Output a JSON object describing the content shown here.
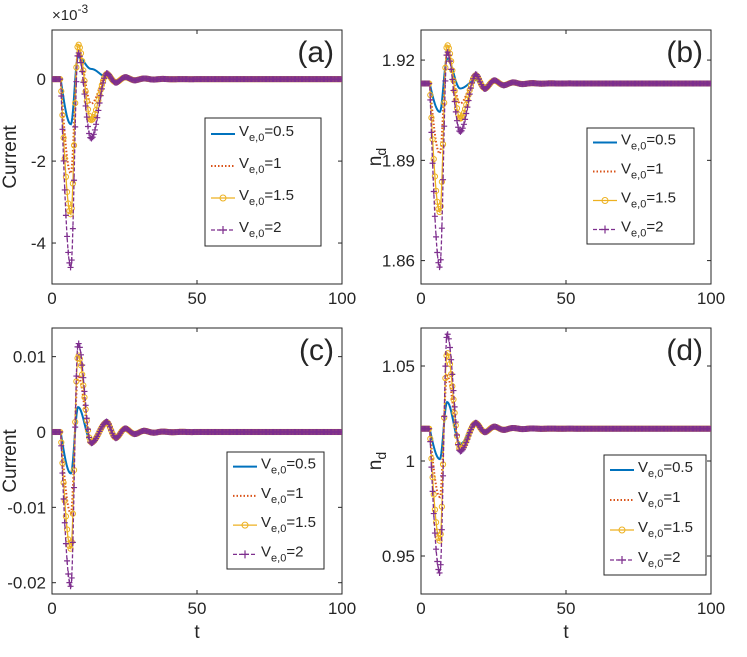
{
  "colors": {
    "s05": "#0072BD",
    "s1": "#D95319",
    "s15": "#EDB120",
    "s2": "#7E2F8E",
    "axis": "#262626"
  },
  "chart_data": [
    {
      "panel": "a",
      "type": "line",
      "title": "(a)",
      "xlabel": "",
      "ylabel": "Current",
      "exponent_label": "×10",
      "exponent_power": "-3",
      "xlim": [
        0,
        100
      ],
      "ylim": [
        -5,
        1.2
      ],
      "xticks": [
        0,
        50,
        100
      ],
      "xtick_labels": [
        "0",
        "50",
        "100"
      ],
      "yticks": [
        -4,
        -2,
        0
      ],
      "ytick_labels": [
        "-4",
        "-2",
        "0"
      ],
      "baseline": 0,
      "legend_position": "center-right",
      "series": [
        {
          "name": "V_{e,0}=0.5",
          "label_main": "V",
          "label_sub": "e,0",
          "label_val": "=0.5",
          "style": "solid",
          "color_key": "s05",
          "min": -1.1,
          "max": 0.55,
          "tr": 0.25,
          "ts": 0.05
        },
        {
          "name": "V_{e,0}=1",
          "label_main": "V",
          "label_sub": "e,0",
          "label_val": "=1",
          "style": "dotted",
          "color_key": "s1",
          "min": -2.3,
          "max": 0.7,
          "tr": -0.6,
          "ts": 0.12
        },
        {
          "name": "V_{e,0}=1.5",
          "label_main": "V",
          "label_sub": "e,0",
          "label_val": "=1.5",
          "style": "circle",
          "color_key": "s15",
          "min": -3.3,
          "max": 0.85,
          "tr": -1.0,
          "ts": 0.13
        },
        {
          "name": "V_{e,0}=2",
          "label_main": "V",
          "label_sub": "e,0",
          "label_val": "=2",
          "style": "plus",
          "color_key": "s2",
          "min": -4.6,
          "max": 0.65,
          "tr": -1.45,
          "ts": 0.15
        }
      ]
    },
    {
      "panel": "b",
      "type": "line",
      "title": "(b)",
      "xlabel": "",
      "ylabel": "n",
      "ylabel_sub": "d",
      "xlim": [
        0,
        100
      ],
      "ylim": [
        1.853,
        1.929
      ],
      "xticks": [
        0,
        50,
        100
      ],
      "xtick_labels": [
        "0",
        "50",
        "100"
      ],
      "yticks": [
        1.86,
        1.89,
        1.92
      ],
      "ytick_labels": [
        "1.86",
        "1.89",
        "1.92"
      ],
      "baseline": 1.913,
      "legend_position": "center-right",
      "series": [
        {
          "name": "V_{e,0}=0.5",
          "label_main": "V",
          "label_sub": "e,0",
          "label_val": "=0.5",
          "style": "solid",
          "color_key": "s05",
          "min": 1.9045,
          "max": 1.9205,
          "tr": 1.9115,
          "ts": 1.914
        },
        {
          "name": "V_{e,0}=1",
          "label_main": "V",
          "label_sub": "e,0",
          "label_val": "=1",
          "style": "dotted",
          "color_key": "s1",
          "min": 1.892,
          "max": 1.922,
          "tr": 1.907,
          "ts": 1.9152
        },
        {
          "name": "V_{e,0}=1.5",
          "label_main": "V",
          "label_sub": "e,0",
          "label_val": "=1.5",
          "style": "circle",
          "color_key": "s15",
          "min": 1.8745,
          "max": 1.9245,
          "tr": 1.9025,
          "ts": 1.9155
        },
        {
          "name": "V_{e,0}=2",
          "label_main": "V",
          "label_sub": "e,0",
          "label_val": "=2",
          "style": "plus",
          "color_key": "s2",
          "min": 1.858,
          "max": 1.9225,
          "tr": 1.8985,
          "ts": 1.9158
        }
      ]
    },
    {
      "panel": "c",
      "type": "line",
      "title": "(c)",
      "xlabel": "t",
      "ylabel": "Current",
      "xlim": [
        0,
        100
      ],
      "ylim": [
        -0.0215,
        0.0138
      ],
      "xticks": [
        0,
        50,
        100
      ],
      "xtick_labels": [
        "0",
        "50",
        "100"
      ],
      "yticks": [
        -0.02,
        -0.01,
        0,
        0.01
      ],
      "ytick_labels": [
        "-0.02",
        "-0.01",
        "0",
        "0.01"
      ],
      "baseline": 0,
      "legend_position": "bottom-right",
      "series": [
        {
          "name": "V_{e,0}=0.5",
          "label_main": "V",
          "label_sub": "e,0",
          "label_val": "=0.5",
          "style": "solid",
          "color_key": "s05",
          "min": -0.0055,
          "max": 0.0033,
          "tr": -0.0012,
          "ts": 0.0012
        },
        {
          "name": "V_{e,0}=1",
          "label_main": "V",
          "label_sub": "e,0",
          "label_val": "=1",
          "style": "dotted",
          "color_key": "s1",
          "min": -0.0108,
          "max": 0.0075,
          "tr": -0.0013,
          "ts": 0.0013
        },
        {
          "name": "V_{e,0}=1.5",
          "label_main": "V",
          "label_sub": "e,0",
          "label_val": "=1.5",
          "style": "circle",
          "color_key": "s15",
          "min": -0.0155,
          "max": 0.0102,
          "tr": -0.0014,
          "ts": 0.0013
        },
        {
          "name": "V_{e,0}=2",
          "label_main": "V",
          "label_sub": "e,0",
          "label_val": "=2",
          "style": "plus",
          "color_key": "s2",
          "min": -0.0205,
          "max": 0.0118,
          "tr": -0.0015,
          "ts": 0.0014
        }
      ]
    },
    {
      "panel": "d",
      "type": "line",
      "title": "(d)",
      "xlabel": "t",
      "ylabel": "n",
      "ylabel_sub": "d",
      "xlim": [
        0,
        100
      ],
      "ylim": [
        0.93,
        1.07
      ],
      "xticks": [
        0,
        50,
        100
      ],
      "xtick_labels": [
        "0",
        "50",
        "100"
      ],
      "yticks": [
        0.95,
        1,
        1.05
      ],
      "ytick_labels": [
        "0.95",
        "1",
        "1.05"
      ],
      "baseline": 1.017,
      "legend_position": "bottom-right",
      "series": [
        {
          "name": "V_{e,0}=0.5",
          "label_main": "V",
          "label_sub": "e,0",
          "label_val": "=0.5",
          "style": "solid",
          "color_key": "s05",
          "min": 1.001,
          "max": 1.031,
          "tr": 1.009,
          "ts": 1.0195
        },
        {
          "name": "V_{e,0}=1",
          "label_main": "V",
          "label_sub": "e,0",
          "label_val": "=1",
          "style": "dotted",
          "color_key": "s1",
          "min": 0.981,
          "max": 1.045,
          "tr": 1.007,
          "ts": 1.0198
        },
        {
          "name": "V_{e,0}=1.5",
          "label_main": "V",
          "label_sub": "e,0",
          "label_val": "=1.5",
          "style": "circle",
          "color_key": "s15",
          "min": 0.958,
          "max": 1.057,
          "tr": 1.006,
          "ts": 1.02
        },
        {
          "name": "V_{e,0}=2",
          "label_main": "V",
          "label_sub": "e,0",
          "label_val": "=2",
          "style": "plus",
          "color_key": "s2",
          "min": 0.941,
          "max": 1.067,
          "tr": 1.005,
          "ts": 1.0202
        }
      ]
    }
  ]
}
